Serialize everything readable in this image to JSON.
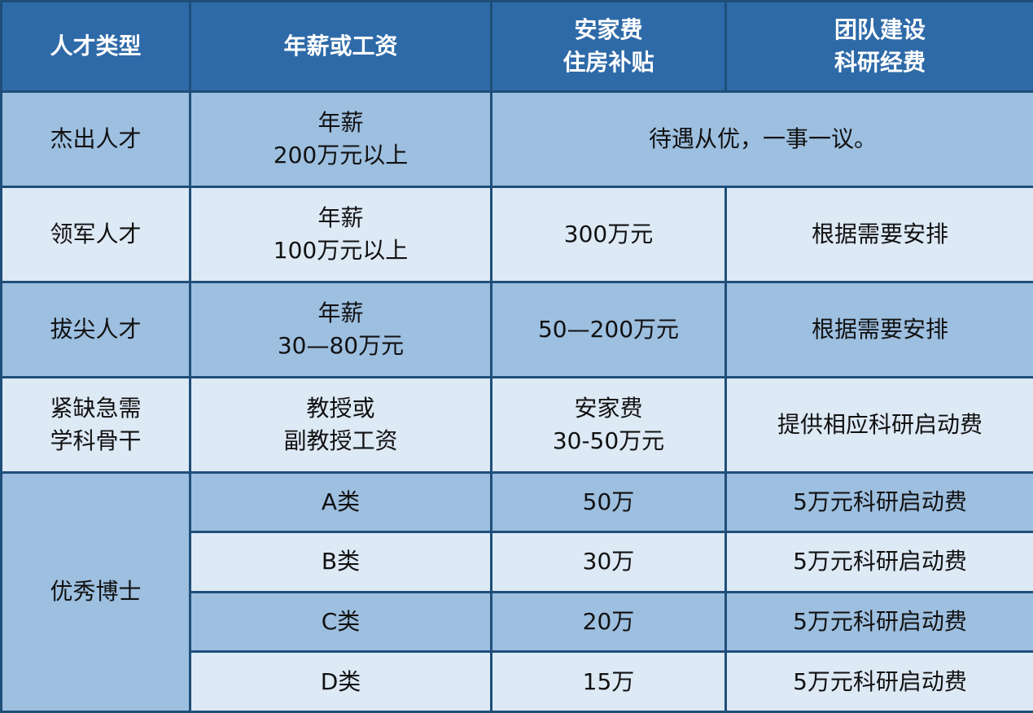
{
  "colors": {
    "header": "#2e6aa8",
    "dark_row": "#9dbfe0",
    "light_row": "#dde9f5",
    "border": "#1f4e79"
  },
  "headers": [
    [
      "人才类型"
    ],
    [
      "年薪或工资"
    ],
    [
      "安家费",
      "住房补贴"
    ],
    [
      "团队建设",
      "科研经费"
    ]
  ],
  "rows": [
    {
      "type": [
        "杰出人才"
      ],
      "salary": [
        "年薪",
        "200万元以上"
      ],
      "merged": "待遇从优，一事一议。"
    },
    {
      "type": [
        "领军人才"
      ],
      "salary": [
        "年薪",
        "100万元以上"
      ],
      "housing": [
        "300万元"
      ],
      "research": [
        "根据需要安排"
      ]
    },
    {
      "type": [
        "拔尖人才"
      ],
      "salary": [
        "年薪",
        "30—80万元"
      ],
      "housing": [
        "50—200万元"
      ],
      "research": [
        "根据需要安排"
      ]
    },
    {
      "type": [
        "紧缺急需",
        "学科骨干"
      ],
      "salary": [
        "教授或",
        "副教授工资"
      ],
      "housing": [
        "安家费",
        "30-50万元"
      ],
      "research": [
        "提供相应科研启动费"
      ]
    }
  ],
  "doctor": {
    "type": "优秀博士",
    "sub": [
      {
        "grade": "A类",
        "housing": "50万",
        "research": "5万元科研启动费"
      },
      {
        "grade": "B类",
        "housing": "30万",
        "research": "5万元科研启动费"
      },
      {
        "grade": "C类",
        "housing": "20万",
        "research": "5万元科研启动费"
      },
      {
        "grade": "D类",
        "housing": "15万",
        "research": "5万元科研启动费"
      }
    ]
  }
}
